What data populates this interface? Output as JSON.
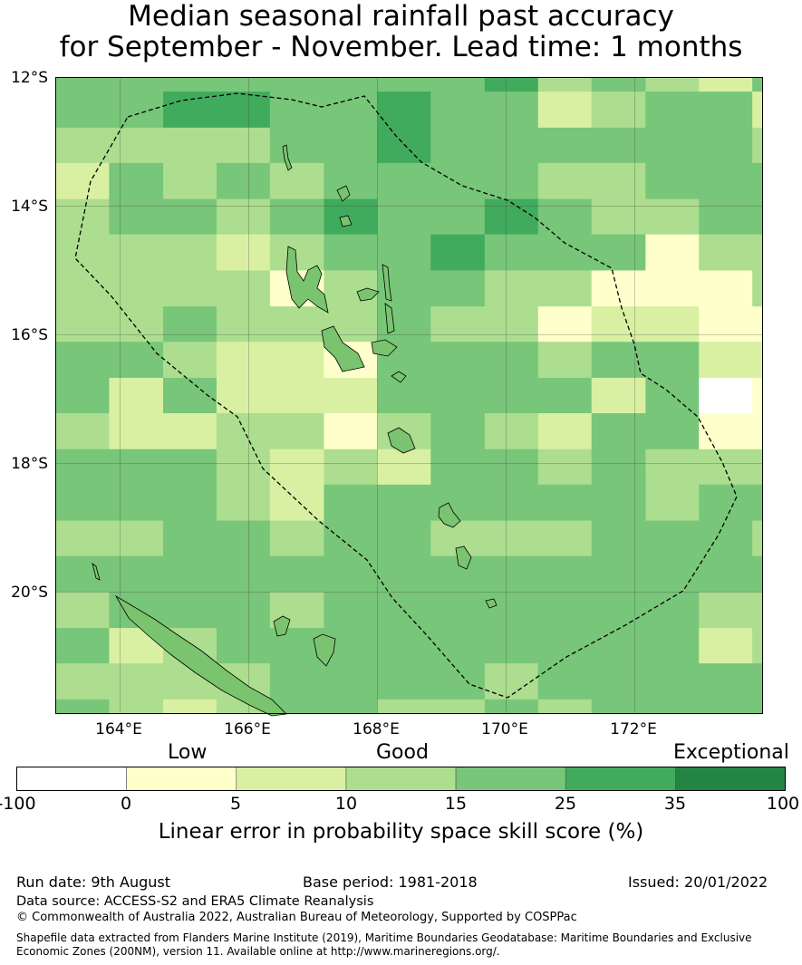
{
  "title_line1": "Median seasonal rainfall past accuracy",
  "title_line2": "for September - November. Lead time: 1 months",
  "map": {
    "lat_labels": [
      "12°S",
      "14°S",
      "16°S",
      "18°S",
      "20°S"
    ],
    "lon_labels": [
      "164°E",
      "166°E",
      "168°E",
      "170°E",
      "172°E"
    ]
  },
  "grid": {
    "lon_edges_deg": [
      163.0,
      163.83,
      164.67,
      165.5,
      166.33,
      167.17,
      168.0,
      168.83,
      169.67,
      170.5,
      171.33,
      172.17,
      173.0,
      173.83
    ],
    "lat_edges_deg": [
      -12.0,
      -12.22,
      -12.78,
      -13.33,
      -13.89,
      -14.44,
      -15.0,
      -15.56,
      -16.11,
      -16.67,
      -17.22,
      -17.78,
      -18.33,
      -18.89,
      -19.44,
      -20.0,
      -20.56,
      -21.11,
      -21.67,
      -21.89
    ],
    "classes_legend": "0:<0  1:0-5  2:5-10  3:10-15  4:15-25  5:25-35  6:35-100",
    "rows": [
      [
        4,
        4,
        4,
        4,
        4,
        4,
        4,
        4,
        5,
        3,
        4,
        3,
        2,
        4
      ],
      [
        4,
        4,
        5,
        5,
        4,
        4,
        5,
        4,
        4,
        2,
        3,
        4,
        4,
        2
      ],
      [
        3,
        3,
        3,
        3,
        4,
        4,
        5,
        4,
        4,
        4,
        4,
        4,
        4,
        3
      ],
      [
        2,
        4,
        3,
        4,
        3,
        4,
        4,
        4,
        4,
        3,
        3,
        4,
        4,
        4
      ],
      [
        3,
        4,
        4,
        3,
        4,
        5,
        4,
        4,
        5,
        4,
        3,
        3,
        4,
        4
      ],
      [
        3,
        3,
        3,
        2,
        3,
        4,
        4,
        5,
        4,
        4,
        4,
        1,
        3,
        3
      ],
      [
        3,
        3,
        3,
        3,
        1,
        3,
        4,
        4,
        3,
        3,
        1,
        1,
        1,
        3
      ],
      [
        3,
        3,
        4,
        3,
        3,
        3,
        4,
        3,
        3,
        1,
        2,
        2,
        1,
        1
      ],
      [
        4,
        4,
        3,
        2,
        2,
        1,
        4,
        4,
        4,
        3,
        4,
        4,
        2,
        2
      ],
      [
        4,
        2,
        4,
        2,
        2,
        2,
        4,
        4,
        4,
        4,
        2,
        4,
        0,
        1
      ],
      [
        3,
        2,
        2,
        3,
        3,
        1,
        3,
        4,
        3,
        2,
        4,
        4,
        1,
        1
      ],
      [
        4,
        4,
        4,
        3,
        2,
        3,
        2,
        4,
        4,
        3,
        4,
        3,
        3,
        3
      ],
      [
        4,
        4,
        4,
        3,
        2,
        4,
        4,
        4,
        4,
        4,
        4,
        3,
        4,
        4
      ],
      [
        3,
        3,
        4,
        4,
        3,
        4,
        4,
        3,
        3,
        3,
        4,
        4,
        4,
        3
      ],
      [
        4,
        4,
        4,
        4,
        4,
        4,
        4,
        4,
        4,
        4,
        4,
        4,
        4,
        4
      ],
      [
        3,
        4,
        4,
        4,
        3,
        4,
        4,
        4,
        4,
        4,
        4,
        4,
        3,
        3
      ],
      [
        4,
        2,
        3,
        4,
        4,
        4,
        4,
        4,
        4,
        4,
        4,
        4,
        2,
        3
      ],
      [
        3,
        3,
        3,
        3,
        4,
        4,
        4,
        4,
        3,
        4,
        4,
        4,
        4,
        4
      ],
      [
        4,
        3,
        2,
        3,
        4,
        4,
        3,
        3,
        4,
        3,
        4,
        4,
        4,
        4
      ]
    ]
  },
  "colorbar": {
    "categories": [
      "Low",
      "Good",
      "Exceptional"
    ],
    "ticks": [
      "-100",
      "0",
      "5",
      "10",
      "15",
      "25",
      "35",
      "100"
    ],
    "colors": [
      "#ffffff",
      "#ffffcc",
      "#d9f0a3",
      "#addd8e",
      "#78c679",
      "#41ab5d",
      "#238443"
    ],
    "label": "Linear error in probability space skill score (%)"
  },
  "footer": {
    "run_date": "Run date: 9th August",
    "base_period": "Base period: 1981-2018",
    "issued": "Issued: 20/01/2022",
    "data_source": "Data source: ACCESS-S2 and ERA5 Climate Reanalysis",
    "copyright": "© Commonwealth of Australia 2022, Australian Bureau of Meteorology, Supported by COSPPac",
    "shapefile_line1": "Shapefile data extracted from Flanders Marine Institute (2019), Maritime Boundaries Geodatabase: Maritime Boundaries and Exclusive",
    "shapefile_line2": "Economic Zones (200NM), version 11. Available online at http://www.marineregions.org/."
  }
}
